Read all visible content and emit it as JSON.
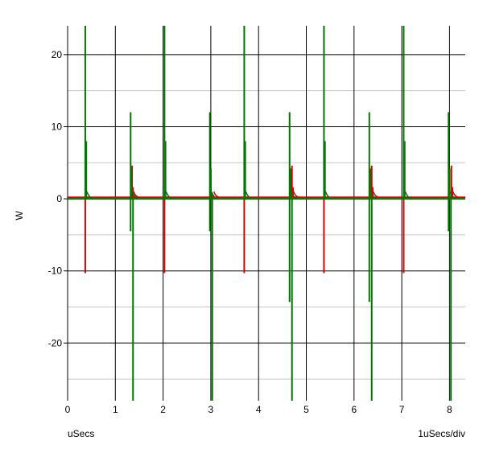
{
  "chart_data": {
    "type": "line",
    "ylabel": "W",
    "xlabel": "uSecs",
    "x_scale_label": "1uSecs/div",
    "xlim": [
      0,
      8.4
    ],
    "ylim": [
      -28,
      24
    ],
    "x_ticks": [
      0,
      1,
      2,
      3,
      4,
      5,
      6,
      7,
      8
    ],
    "y_ticks": [
      -20,
      -10,
      0,
      10,
      20
    ],
    "grid": true,
    "series": [
      {
        "color": "#dd0000",
        "baseline": 0.2,
        "spikes": [
          {
            "x": 0.37,
            "up": 0,
            "down": -10.3
          },
          {
            "x": 1.35,
            "up": 4.6,
            "down": 0
          },
          {
            "x": 2.03,
            "up": 0,
            "down": -10.3
          },
          {
            "x": 3.03,
            "up": 0.8,
            "down": 0
          },
          {
            "x": 3.7,
            "up": 0,
            "down": -10.3
          },
          {
            "x": 4.7,
            "up": 4.6,
            "down": 0
          },
          {
            "x": 5.37,
            "up": 0,
            "down": -10.3
          },
          {
            "x": 6.37,
            "up": 4.6,
            "down": 0
          },
          {
            "x": 7.04,
            "up": 0,
            "down": -10.3
          },
          {
            "x": 8.04,
            "up": 4.6,
            "down": 0
          }
        ]
      },
      {
        "color": "#007700",
        "baseline": 0,
        "spikes": [
          {
            "x": 0.37,
            "up": 24,
            "down": 0
          },
          {
            "x": 1.32,
            "up": 12.0,
            "down": -4.5
          },
          {
            "x": 1.37,
            "up": 0,
            "down": -28
          },
          {
            "x": 2.03,
            "up": 24,
            "down": 0
          },
          {
            "x": 2.98,
            "up": 12.0,
            "down": -4.5
          },
          {
            "x": 3.03,
            "up": 0,
            "down": -28
          },
          {
            "x": 3.7,
            "up": 24,
            "down": 0
          },
          {
            "x": 4.65,
            "up": 12.0,
            "down": -14.3
          },
          {
            "x": 4.7,
            "up": 0,
            "down": -28
          },
          {
            "x": 5.37,
            "up": 24,
            "down": 0
          },
          {
            "x": 6.32,
            "up": 12.0,
            "down": -14.3
          },
          {
            "x": 6.37,
            "up": 0,
            "down": -28
          },
          {
            "x": 7.04,
            "up": 24,
            "down": 0
          },
          {
            "x": 7.98,
            "up": 12.0,
            "down": -4.5
          },
          {
            "x": 8.03,
            "up": 0,
            "down": -28
          }
        ]
      }
    ]
  }
}
